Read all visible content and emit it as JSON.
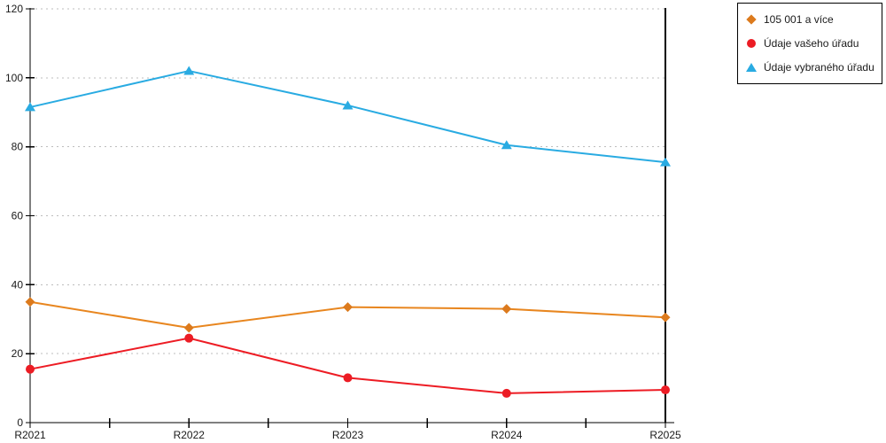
{
  "chart_data": {
    "type": "line",
    "title": "",
    "xlabel": "",
    "ylabel": "",
    "categories": [
      "R2021",
      "R2022",
      "R2023",
      "R2024",
      "R2025"
    ],
    "series": [
      {
        "name": "105 001 a více",
        "marker": "diamond",
        "marker_color": "#DC7A1D",
        "line_color": "#E8861F",
        "values": [
          35,
          27.5,
          33.5,
          33,
          30.5
        ]
      },
      {
        "name": "Údaje vašeho úřadu",
        "marker": "circle",
        "marker_color": "#EC1C24",
        "line_color": "#ED1C24",
        "values": [
          15.5,
          24.5,
          13,
          8.5,
          9.5
        ]
      },
      {
        "name": "Údaje vybraného úřadu",
        "marker": "triangle",
        "marker_color": "#29ABE2",
        "line_color": "#29ABE2",
        "values": [
          91.5,
          102,
          92,
          80.5,
          75.5
        ]
      }
    ],
    "ylim": [
      0,
      120
    ],
    "ytick_step": 20,
    "ytick_labels": [
      "0",
      "20",
      "40",
      "60",
      "80",
      "100",
      "120"
    ],
    "grid": "horizontal-dashed",
    "legend_position": "top-right"
  },
  "colors": {
    "background": "#FFFFFF",
    "axis": "#000000",
    "gridline": "#BDBDBD",
    "text": "#1A1A1A"
  }
}
